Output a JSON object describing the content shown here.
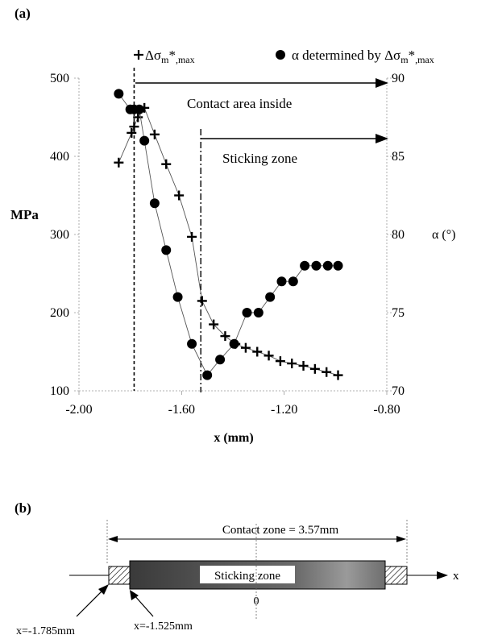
{
  "panel_a": {
    "label": "(a)",
    "legend_plus_prefix": "Δσ",
    "legend_plus_sub_m": "m",
    "legend_plus_star": "*",
    "legend_plus_sub_max": ",max",
    "legend_circle_prefix": "α determined by Δσ",
    "legend_circle_sub_m": "m",
    "legend_circle_star": "*",
    "legend_circle_sub_max": ",max",
    "annotation_contact": "Contact area inside",
    "annotation_sticking": "Sticking zone"
  },
  "panel_b": {
    "label": "(b)",
    "contact_zone_label": "Contact zone = 3.57mm",
    "sticking_zone_label": "Sticking zone",
    "zero_label": "0",
    "axis_label": "x",
    "left_edge_label": "x=-1.785mm",
    "inner_edge_label": "x=-1.525mm"
  },
  "chart_data": {
    "type": "scatter",
    "xlabel": "x (mm)",
    "ylabel_left": "MPa",
    "ylabel_right": "α (°)",
    "xlim": [
      -2.0,
      -0.8
    ],
    "ylim_left": [
      100,
      500
    ],
    "ylim_right": [
      70,
      90
    ],
    "x_ticks": [
      "-2.00",
      "-1.60",
      "-1.20",
      "-0.80"
    ],
    "y_left_ticks": [
      "100",
      "200",
      "300",
      "400",
      "500"
    ],
    "y_right_ticks": [
      "70",
      "75",
      "80",
      "85",
      "90"
    ],
    "vertical_lines_x": [
      -1.785,
      -1.525
    ],
    "series": [
      {
        "name": "Δσm*,max",
        "marker": "plus",
        "axis": "left",
        "x": [
          -1.845,
          -1.795,
          -1.785,
          -1.77,
          -1.745,
          -1.705,
          -1.66,
          -1.61,
          -1.56,
          -1.52,
          -1.475,
          -1.43,
          -1.39,
          -1.35,
          -1.305,
          -1.26,
          -1.215,
          -1.17,
          -1.125,
          -1.08,
          -1.035,
          -0.99
        ],
        "y": [
          392,
          430,
          438,
          450,
          462,
          428,
          390,
          350,
          297,
          215,
          185,
          170,
          160,
          155,
          150,
          145,
          138,
          135,
          132,
          128,
          124,
          120
        ]
      },
      {
        "name": "α determined by Δσm*,max",
        "marker": "circle",
        "axis": "right",
        "x": [
          -1.845,
          -1.8,
          -1.785,
          -1.765,
          -1.745,
          -1.705,
          -1.66,
          -1.615,
          -1.56,
          -1.5,
          -1.45,
          -1.395,
          -1.345,
          -1.3,
          -1.255,
          -1.21,
          -1.165,
          -1.12,
          -1.075,
          -1.03,
          -0.99
        ],
        "y": [
          89,
          88,
          88,
          88,
          86,
          82,
          79,
          76,
          73,
          71,
          72,
          73,
          75,
          75,
          76,
          77,
          77,
          78,
          78,
          78,
          78
        ]
      }
    ]
  }
}
